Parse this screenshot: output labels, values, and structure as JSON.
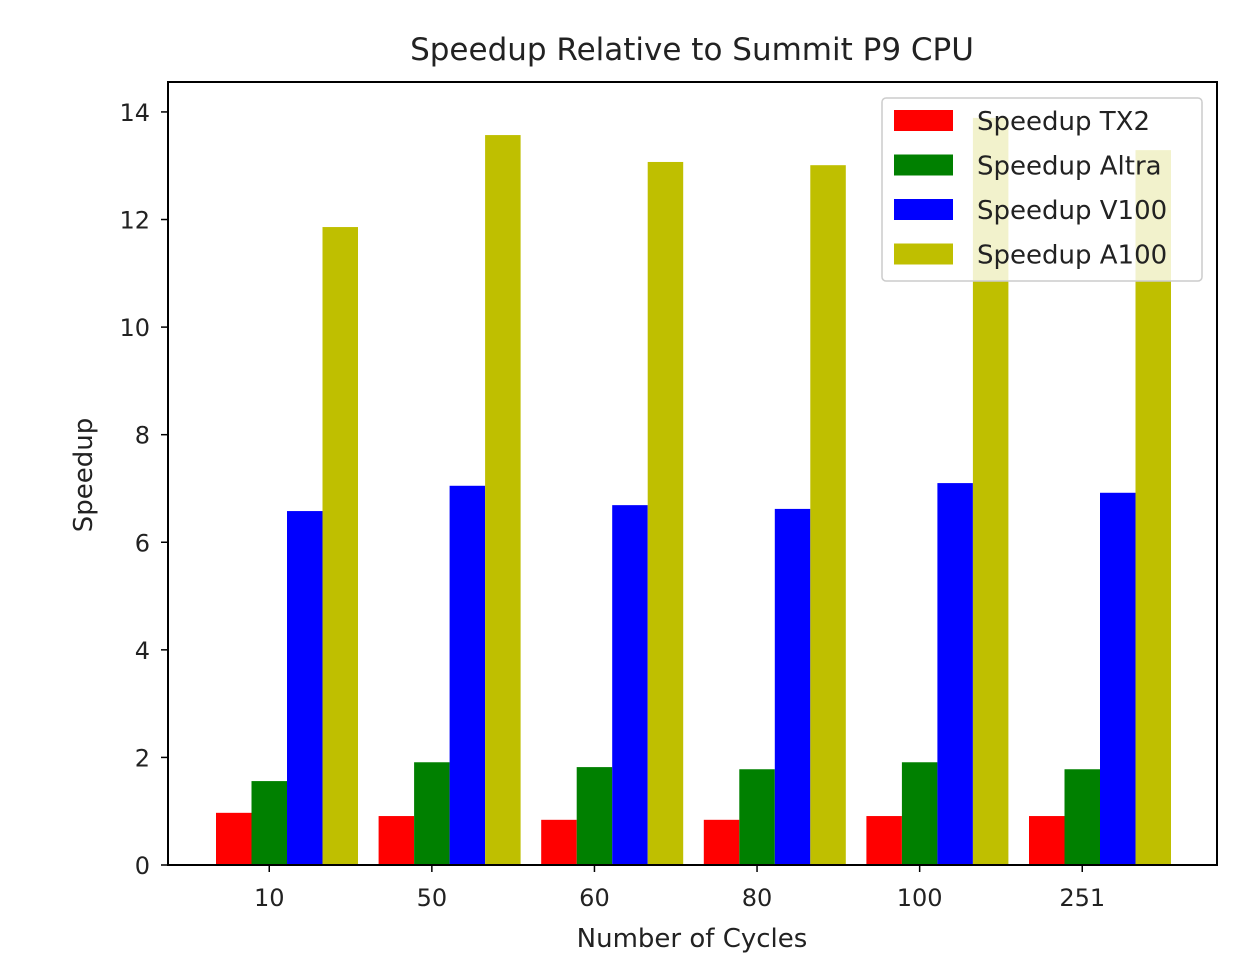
{
  "chart_data": {
    "type": "bar",
    "title": "Speedup Relative to Summit P9 CPU",
    "xlabel": "Number of Cycles",
    "ylabel": "Speedup",
    "categories": [
      "10",
      "50",
      "60",
      "80",
      "100",
      "251"
    ],
    "ylim": [
      0,
      14.5
    ],
    "yticks": [
      "0",
      "2",
      "4",
      "6",
      "8",
      "10",
      "12",
      "14"
    ],
    "grid": false,
    "legend_position": "top-right",
    "series": [
      {
        "name": "Speedup TX2",
        "color": "#ff0000",
        "values": [
          0.97,
          0.91,
          0.84,
          0.84,
          0.91,
          0.91
        ]
      },
      {
        "name": "Speedup Altra",
        "color": "#008000",
        "values": [
          1.56,
          1.91,
          1.82,
          1.78,
          1.91,
          1.78
        ]
      },
      {
        "name": "Speedup V100",
        "color": "#0000ff",
        "values": [
          6.58,
          7.05,
          6.69,
          6.62,
          7.1,
          6.92
        ]
      },
      {
        "name": "Speedup A100",
        "color": "#bfbf00",
        "values": [
          11.86,
          13.57,
          13.07,
          13.01,
          13.89,
          13.29
        ]
      }
    ]
  }
}
